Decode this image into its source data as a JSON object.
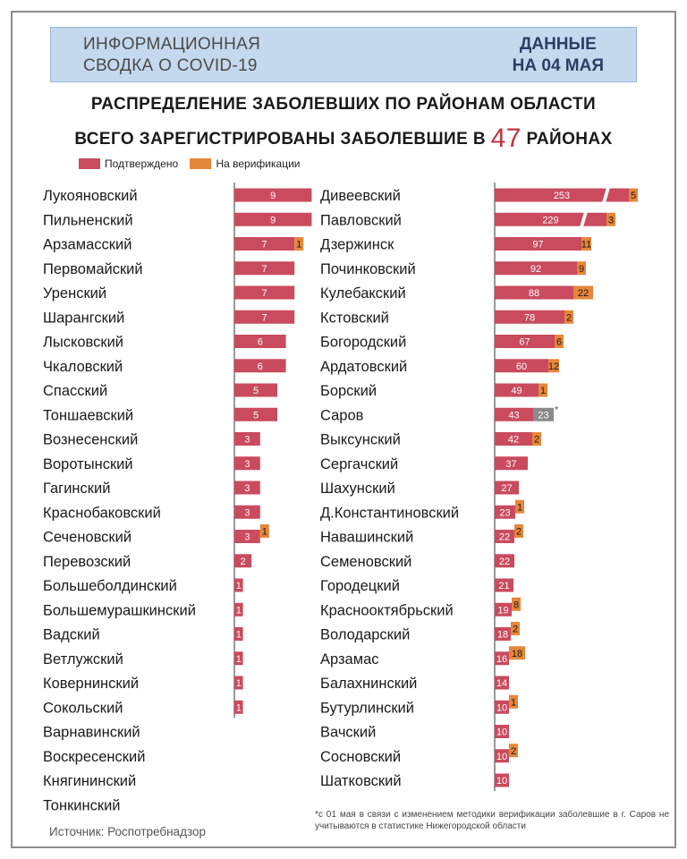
{
  "header": {
    "left_line1": "ИНФОРМАЦИОННАЯ",
    "left_line2": "СВОДКА О COVID-19",
    "right_line1": "ДАННЫЕ",
    "right_line2": "НА 04 МАЯ"
  },
  "headline": {
    "line1": "РАСПРЕДЕЛЕНИЕ ЗАБОЛЕВШИХ ПО РАЙОНАМ ОБЛАСТИ",
    "line2_pre": "ВСЕГО ЗАРЕГИСТРИРОВАНЫ ЗАБОЛЕВШИЕ В",
    "line2_num": "47",
    "line2_post": "РАЙОНАХ"
  },
  "colors": {
    "confirmed": "#c94b5d",
    "verification": "#e5873a",
    "excluded": "#8a8a8a",
    "headline_accent": "#c0313f"
  },
  "chart_data": [
    {
      "type": "bar",
      "orientation": "horizontal",
      "stacked": true,
      "title": "Распределение заболевших по районам области",
      "legend": [
        "Подтверждено",
        "На верификации"
      ],
      "legend_position": "top-left",
      "categories": [
        "Лукояновский",
        "Пильненский",
        "Арзамасский",
        "Первомайский",
        "Уренский",
        "Шарангский",
        "Лысковский",
        "Чкаловский",
        "Спасский",
        "Тоншаевский",
        "Вознесенский",
        "Воротынский",
        "Гагинский",
        "Краснобаковский",
        "Сеченовский",
        "Перевозский",
        "Большеболдинский",
        "Большемурашкинский",
        "Вадский",
        "Ветлужский",
        "Ковернинский",
        "Сокольский",
        "Варнавинский",
        "Воскресенский",
        "Княгининский",
        "Тонкинский"
      ],
      "series": [
        {
          "name": "Подтверждено",
          "values": [
            9,
            9,
            7,
            7,
            7,
            7,
            6,
            6,
            5,
            5,
            3,
            3,
            3,
            3,
            3,
            2,
            1,
            1,
            1,
            1,
            1,
            1,
            0,
            0,
            0,
            0
          ]
        },
        {
          "name": "На верификации",
          "values": [
            0,
            0,
            1,
            0,
            0,
            0,
            0,
            0,
            0,
            0,
            0,
            0,
            0,
            0,
            1,
            0,
            0,
            0,
            0,
            0,
            0,
            0,
            0,
            0,
            0,
            0
          ]
        }
      ]
    },
    {
      "type": "bar",
      "orientation": "horizontal",
      "stacked": true,
      "axis_break": true,
      "legend": [
        "Подтверждено",
        "На верификации"
      ],
      "categories": [
        "Дивеевский",
        "Павловский",
        "Дзержинск",
        "Починковский",
        "Кулебакский",
        "Кстовский",
        "Богородский",
        "Ардатовский",
        "Борский",
        "Саров",
        "Выксунский",
        "Сергачский",
        "Шахунский",
        "Д.Константиновский",
        "Навашинский",
        "Семеновский",
        "Городецкий",
        "Краснооктябрьский",
        "Володарский",
        "Арзамас",
        "Балахнинский",
        "Бутурлинский",
        "Вачский",
        "Сосновский",
        "Шатковский"
      ],
      "series": [
        {
          "name": "Подтверждено",
          "values": [
            253,
            229,
            97,
            92,
            88,
            78,
            67,
            60,
            49,
            43,
            42,
            37,
            27,
            23,
            22,
            22,
            21,
            19,
            18,
            16,
            14,
            10,
            10,
            10,
            10
          ]
        },
        {
          "name": "На верификации",
          "values": [
            5,
            3,
            11,
            9,
            22,
            2,
            6,
            12,
            1,
            23,
            2,
            0,
            0,
            1,
            2,
            0,
            0,
            8,
            2,
            18,
            0,
            1,
            0,
            2,
            0
          ]
        }
      ],
      "annotations": [
        {
          "category": "Саров",
          "label": "23",
          "mark": "*",
          "note": "не учитываются в статистике"
        }
      ]
    }
  ],
  "footnote": "*с 01 мая в связи с изменением методики верификации заболевшие в г. Саров не учитываются в статистике Нижегородской области",
  "source": "Источник: Роспотребнадзор"
}
